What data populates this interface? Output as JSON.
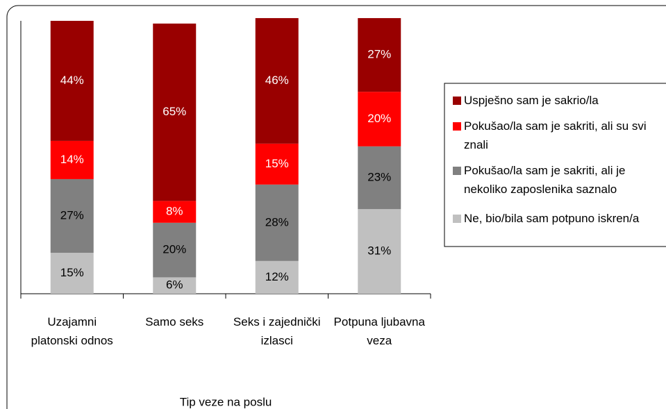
{
  "chart_data": {
    "type": "stacked_bar",
    "x_label": "Tip veze na poslu",
    "categories": [
      "Uzajamni platonski odnos",
      "Samo seks",
      "Seks i zajednički izlasci",
      "Potpuna ljubavna veza"
    ],
    "series": [
      {
        "name": "Ne, bio/bila sam potpuno iskren/a",
        "color": "#c0c0c0",
        "values": [
          15,
          6,
          12,
          31
        ],
        "value_labels": [
          "15%",
          "6%",
          "12%",
          "31%"
        ]
      },
      {
        "name": "Pokušao/la sam je sakriti, ali je nekoliko zaposlenika saznalo",
        "color": "#808080",
        "values": [
          27,
          20,
          28,
          23
        ],
        "value_labels": [
          "27%",
          "20%",
          "28%",
          "23%"
        ]
      },
      {
        "name": "Pokušao/la sam je sakriti, ali su svi znali",
        "color": "#ff0000",
        "values": [
          14,
          8,
          15,
          20
        ],
        "value_labels": [
          "14%",
          "8%",
          "15%",
          "20%"
        ]
      },
      {
        "name": "Uspješno sam je sakrio/la",
        "color": "#990000",
        "values": [
          44,
          65,
          46,
          27
        ],
        "value_labels": [
          "44%",
          "65%",
          "46%",
          "27%"
        ]
      }
    ],
    "ylim": [
      0,
      100
    ]
  }
}
